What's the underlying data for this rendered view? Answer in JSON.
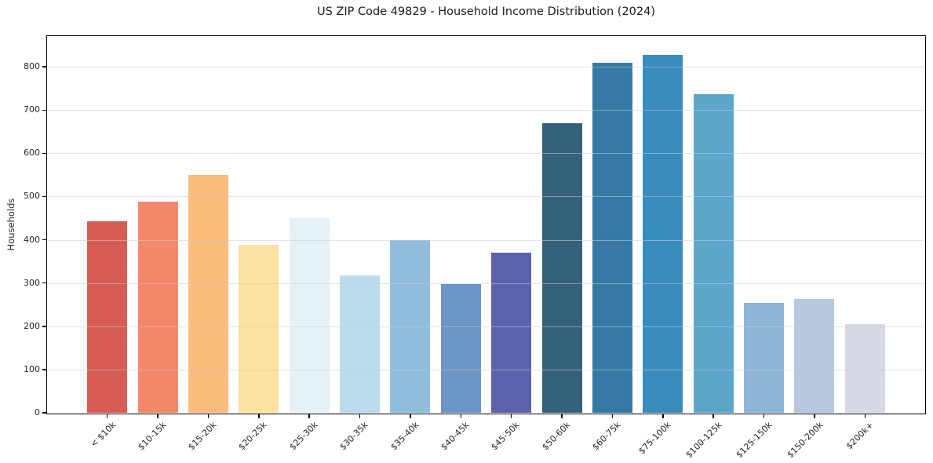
{
  "figure": {
    "background": "#ffffff"
  },
  "chart_data": {
    "type": "bar",
    "title": "US ZIP Code 49829 - Household Income Distribution (2024)",
    "xlabel": "",
    "ylabel": "Households",
    "categories": [
      "< $10k",
      "$10-15k",
      "$15-20k",
      "$20-25k",
      "$25-30k",
      "$30-35k",
      "$35-40k",
      "$40-45k",
      "$45-50k",
      "$50-60k",
      "$60-75k",
      "$75-100k",
      "$100-125k",
      "$125-150k",
      "$150-200k",
      "$200k+"
    ],
    "values": [
      442,
      489,
      550,
      388,
      450,
      318,
      400,
      297,
      370,
      670,
      810,
      828,
      736,
      254,
      264,
      205
    ],
    "bar_colors": [
      "#d65c55",
      "#f4886b",
      "#fbbc7d",
      "#fde2a2",
      "#e6f1f7",
      "#bbdcec",
      "#92bedd",
      "#6c94c4",
      "#5c61ab",
      "#35607a",
      "#3679a4",
      "#378bbd",
      "#5ba6c9",
      "#8fb5d6",
      "#b8c8de",
      "#d7d9e5"
    ],
    "yticks": [
      0,
      100,
      200,
      300,
      400,
      500,
      600,
      700,
      800
    ],
    "ylim": [
      0,
      870
    ],
    "grid": "horizontal-y",
    "grid_color": "rgba(205,205,205,0.55)",
    "axis_color": "#000000",
    "tick_label_color": "#262626",
    "legend": "none"
  }
}
